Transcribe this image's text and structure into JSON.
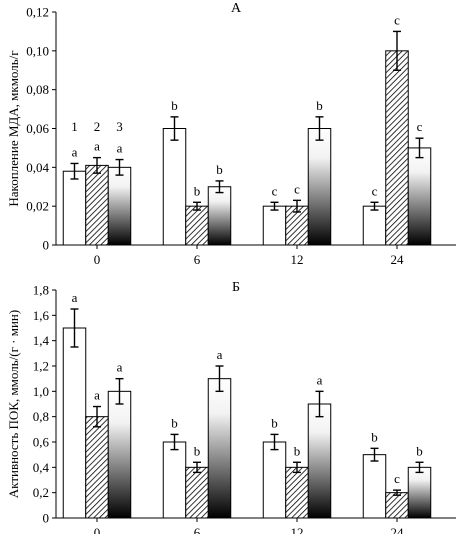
{
  "chart_data": [
    {
      "type": "bar",
      "panel_label": "А",
      "ylabel": "Накопление МДА, мкмоль/г",
      "categories": [
        "0",
        "6",
        "12",
        "24"
      ],
      "ylim": [
        0,
        0.12
      ],
      "yticks": [
        "0",
        "0,02",
        "0,04",
        "0,06",
        "0,08",
        "0,10",
        "0,12"
      ],
      "series": [
        {
          "name": "1",
          "fill": "white",
          "values": [
            0.038,
            0.06,
            0.02,
            0.02
          ],
          "errors": [
            0.004,
            0.006,
            0.002,
            0.002
          ],
          "letters": [
            "a",
            "b",
            "c",
            "c"
          ]
        },
        {
          "name": "2",
          "fill": "hatch",
          "values": [
            0.041,
            0.02,
            0.02,
            0.1
          ],
          "errors": [
            0.004,
            0.002,
            0.003,
            0.01
          ],
          "letters": [
            "a",
            "b",
            "c",
            "c"
          ]
        },
        {
          "name": "3",
          "fill": "gradient",
          "values": [
            0.04,
            0.03,
            0.06,
            0.05
          ],
          "errors": [
            0.004,
            0.003,
            0.006,
            0.005
          ],
          "letters": [
            "a",
            "b",
            "b",
            "c"
          ]
        }
      ]
    },
    {
      "type": "bar",
      "panel_label": "Б",
      "ylabel": "Активность ПОК, ммоль/(г · мин)",
      "categories": [
        "0",
        "6",
        "12",
        "24"
      ],
      "ylim": [
        0,
        1.8
      ],
      "yticks": [
        "0",
        "0,2",
        "0,4",
        "0,6",
        "0,8",
        "1,0",
        "1,2",
        "1,4",
        "1,6",
        "1,8"
      ],
      "series": [
        {
          "name": "1",
          "fill": "white",
          "values": [
            1.5,
            0.6,
            0.6,
            0.5
          ],
          "errors": [
            0.15,
            0.06,
            0.06,
            0.05
          ],
          "letters": [
            "a",
            "b",
            "b",
            "b"
          ]
        },
        {
          "name": "2",
          "fill": "hatch",
          "values": [
            0.8,
            0.4,
            0.4,
            0.2
          ],
          "errors": [
            0.08,
            0.04,
            0.04,
            0.02
          ],
          "letters": [
            "a",
            "b",
            "b",
            "c"
          ]
        },
        {
          "name": "3",
          "fill": "gradient",
          "values": [
            1.0,
            1.1,
            0.9,
            0.4
          ],
          "errors": [
            0.1,
            0.1,
            0.1,
            0.04
          ],
          "letters": [
            "a",
            "a",
            "a",
            "b"
          ]
        }
      ]
    }
  ]
}
